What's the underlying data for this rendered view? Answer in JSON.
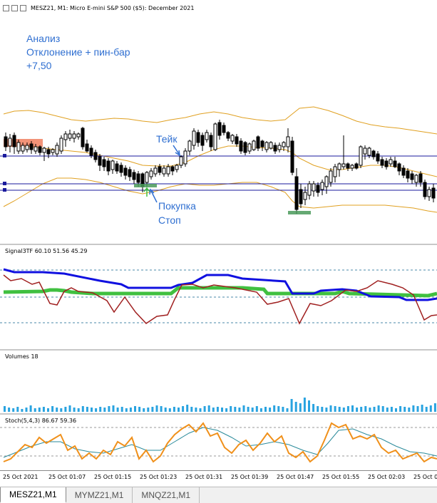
{
  "header": {
    "title": "MESZ21, M1:  Micro E-mini S&P 500 ($5): December 2021"
  },
  "annotations": {
    "analysis_lines": [
      "Анализ",
      "Отклонение + пин-бар",
      "+7,50"
    ],
    "take": "Тейк",
    "buy": "Покупка",
    "stop": "Стоп"
  },
  "subwindows": {
    "signal_title": "Signal3TF 60.10 51.56 45.29",
    "volumes_title": "Volumes 18",
    "stoch_title": "Stoch(5,4,3) 86.67 59.36"
  },
  "xaxis": {
    "labels": [
      "25 Oct 2021",
      "25 Oct 01:07",
      "25 Oct 01:15",
      "25 Oct 01:23",
      "25 Oct 01:31",
      "25 Oct 01:39",
      "25 Oct 01:47",
      "25 Oct 01:55",
      "25 Oct 02:03",
      "25 Oct 0"
    ]
  },
  "tabs": [
    "MESZ21,M1",
    "MYMZ21,M1",
    "MNQZ21,M1"
  ],
  "colors": {
    "bullish_body": "#ffffff",
    "bearish_body": "#000000",
    "bollinger": "#e0a020",
    "level_line": "#1a1a9c",
    "annotation_blue": "#2f6fd1",
    "signal_blue": "#1010e0",
    "signal_green": "#40c040",
    "signal_red": "#a02020",
    "volume_bar": "#29a3e0",
    "stoch_main": "#f0901a",
    "stoch_signal": "#2a8a9a",
    "stop_bar": "#4a9a5a",
    "zone_box": "#f08060"
  }
}
